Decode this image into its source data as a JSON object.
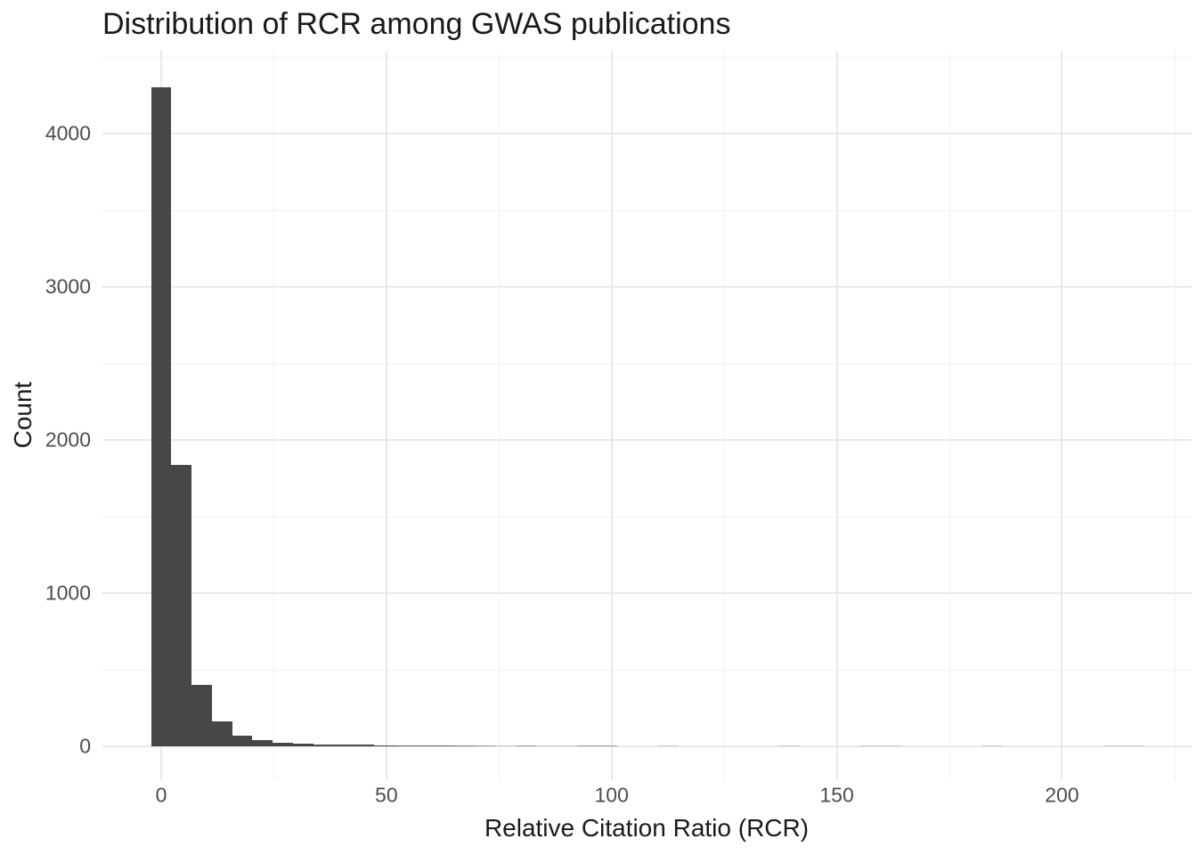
{
  "title": "Distribution of RCR among GWAS publications",
  "x_axis": {
    "label": "Relative Citation Ratio (RCR)",
    "ticks": [
      0,
      50,
      100,
      150,
      200
    ]
  },
  "y_axis": {
    "label": "Count",
    "ticks": [
      0,
      1000,
      2000,
      3000,
      4000
    ]
  },
  "colors": {
    "bar": "#474747",
    "bar_count2": "#9b9b9b",
    "bar_count1": "#c6c6c6",
    "grid_major": "#e8e8e8",
    "grid_minor": "#f1f1f1",
    "axis_text": "#4d4d4d",
    "title_text": "#1a1a1a",
    "background": "#ffffff"
  },
  "chart_data": {
    "type": "bar",
    "subtype": "histogram",
    "title": "Distribution of RCR among GWAS publications",
    "xlabel": "Relative Citation Ratio (RCR)",
    "ylabel": "Count",
    "bin_width": 4.5,
    "bin_centers": [
      0,
      4.5,
      9,
      13.5,
      18,
      22.5,
      27,
      31.5,
      36,
      40.5,
      45,
      49.5,
      54,
      58.5,
      63,
      67.5,
      72,
      76.5,
      81,
      85.5,
      90,
      94.5,
      99,
      103.5,
      108,
      112.5,
      117,
      121.5,
      126,
      130.5,
      135,
      139.5,
      144,
      148.5,
      153,
      157.5,
      162,
      166.5,
      171,
      175.5,
      180,
      184.5,
      189,
      193.5,
      198,
      202.5,
      207,
      211.5,
      216
    ],
    "counts": [
      4300,
      1840,
      400,
      160,
      70,
      38,
      22,
      16,
      12,
      9,
      12,
      6,
      5,
      4,
      4,
      3,
      2,
      1,
      2,
      1,
      1,
      2,
      2,
      0,
      0,
      1,
      0,
      0,
      0,
      0,
      0,
      1,
      0,
      0,
      0,
      1,
      1,
      0,
      0,
      0,
      0,
      1,
      0,
      0,
      0,
      0,
      0,
      1,
      1
    ],
    "xlim": [
      -13,
      230
    ],
    "ylim": [
      -215,
      4515
    ],
    "x_major_grid_step": 50,
    "x_minor_grid_step": 25,
    "y_major_grid_step": 1000,
    "y_minor_grid_step": 500,
    "grid": "major+minor",
    "legend": "none"
  }
}
